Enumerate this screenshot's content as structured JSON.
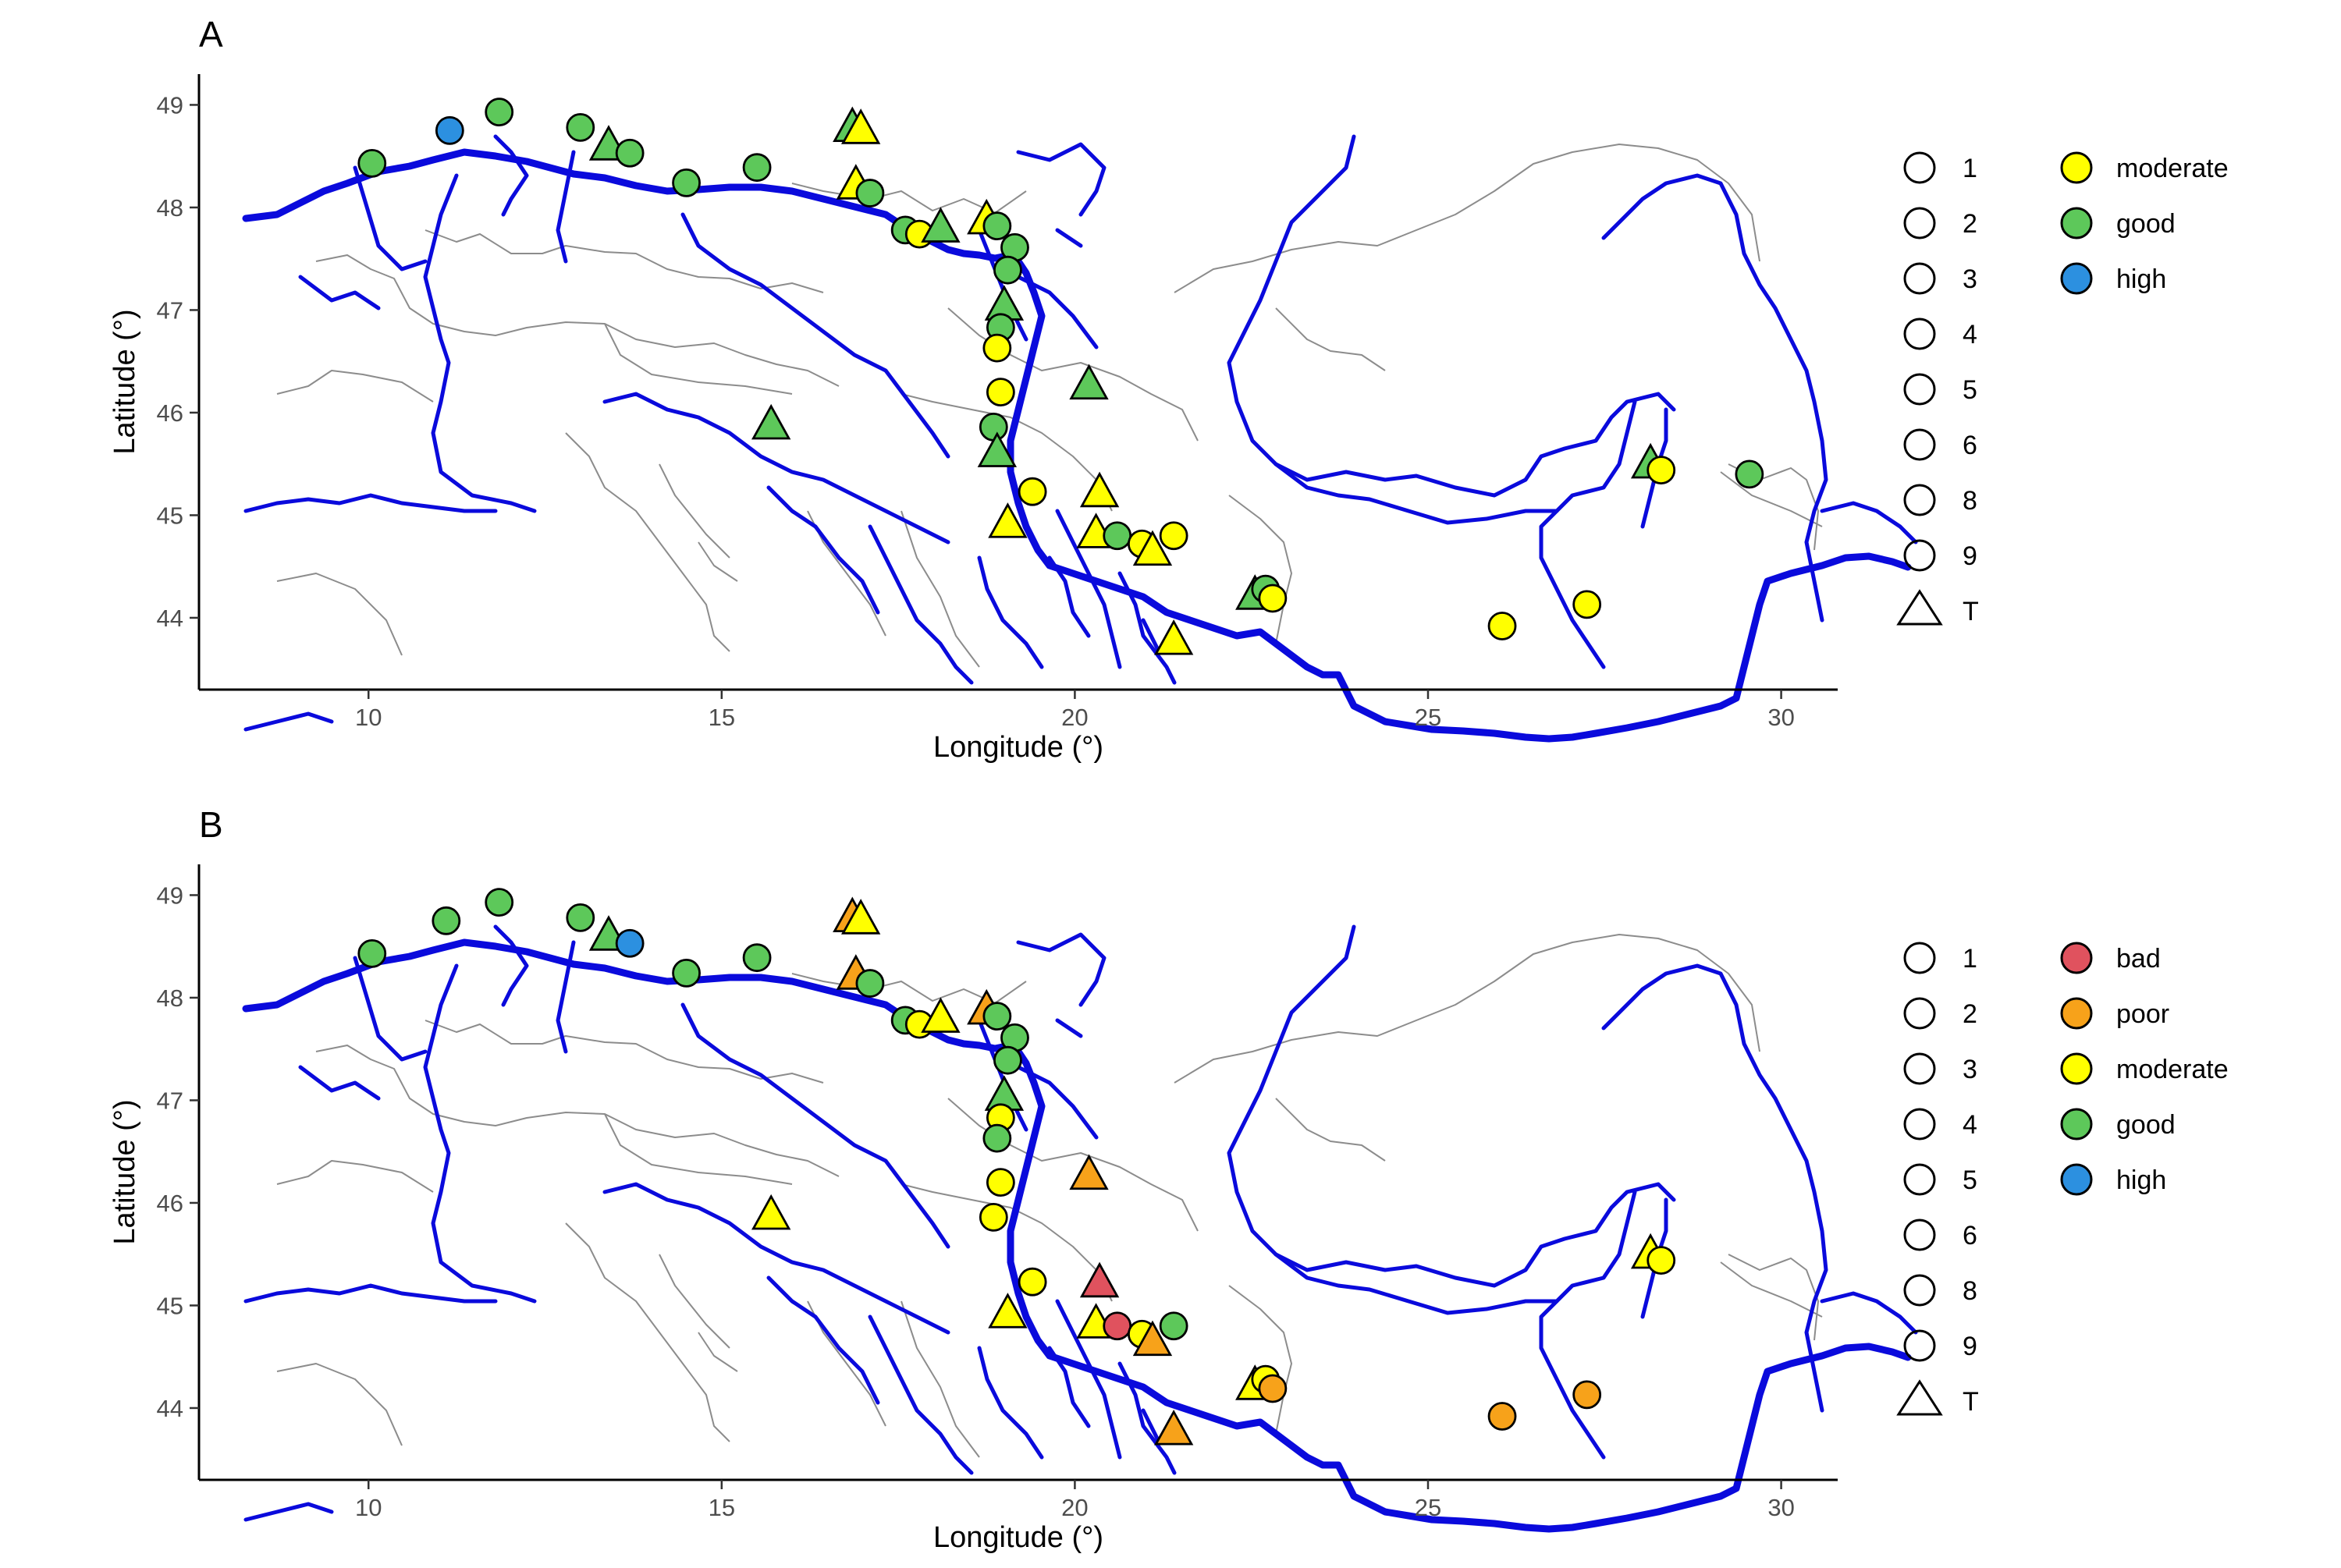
{
  "panels": [
    {
      "letter": "A",
      "size_legend": [
        "1",
        "2",
        "3",
        "4",
        "5",
        "6",
        "8",
        "9",
        "T"
      ],
      "status_legend": [
        {
          "label": "moderate",
          "color": "#ffff00"
        },
        {
          "label": "good",
          "color": "#5dc85a"
        },
        {
          "label": "high",
          "color": "#2c90e0"
        }
      ]
    },
    {
      "letter": "B",
      "size_legend": [
        "1",
        "2",
        "3",
        "4",
        "5",
        "6",
        "8",
        "9",
        "T"
      ],
      "status_legend": [
        {
          "label": "bad",
          "color": "#e0525e"
        },
        {
          "label": "poor",
          "color": "#f7a21a"
        },
        {
          "label": "moderate",
          "color": "#ffff00"
        },
        {
          "label": "good",
          "color": "#5dc85a"
        },
        {
          "label": "high",
          "color": "#2c90e0"
        }
      ]
    }
  ],
  "axes": {
    "xlabel": "Longitude (°)",
    "ylabel": "Latitude (°)",
    "xticks": [
      "10",
      "15",
      "20",
      "25",
      "30"
    ],
    "yticks": [
      "44",
      "45",
      "46",
      "47",
      "48",
      "49"
    ]
  },
  "chart_data": [
    {
      "type": "scatter",
      "title": "A",
      "xlabel": "Longitude (°)",
      "ylabel": "Latitude (°)",
      "xlim": [
        7.6,
        30.8
      ],
      "ylim": [
        43.3,
        49.3
      ],
      "points": [
        {
          "lon": 10.05,
          "lat": 48.43,
          "status": "good",
          "shape": "circle"
        },
        {
          "lon": 11.15,
          "lat": 48.75,
          "status": "high",
          "shape": "circle"
        },
        {
          "lon": 11.85,
          "lat": 48.93,
          "status": "good",
          "shape": "circle"
        },
        {
          "lon": 13.0,
          "lat": 48.78,
          "status": "good",
          "shape": "circle"
        },
        {
          "lon": 13.4,
          "lat": 48.6,
          "status": "good",
          "shape": "triangle"
        },
        {
          "lon": 13.7,
          "lat": 48.53,
          "status": "good",
          "shape": "circle"
        },
        {
          "lon": 14.5,
          "lat": 48.24,
          "status": "good",
          "shape": "circle"
        },
        {
          "lon": 15.5,
          "lat": 48.39,
          "status": "good",
          "shape": "circle"
        },
        {
          "lon": 16.85,
          "lat": 48.78,
          "status": "good",
          "shape": "triangle"
        },
        {
          "lon": 16.97,
          "lat": 48.76,
          "status": "moderate",
          "shape": "triangle"
        },
        {
          "lon": 16.9,
          "lat": 48.22,
          "status": "moderate",
          "shape": "triangle"
        },
        {
          "lon": 17.1,
          "lat": 48.14,
          "status": "good",
          "shape": "circle"
        },
        {
          "lon": 17.6,
          "lat": 47.78,
          "status": "good",
          "shape": "circle"
        },
        {
          "lon": 17.8,
          "lat": 47.74,
          "status": "moderate",
          "shape": "circle"
        },
        {
          "lon": 18.1,
          "lat": 47.8,
          "status": "good",
          "shape": "triangle"
        },
        {
          "lon": 18.75,
          "lat": 47.88,
          "status": "moderate",
          "shape": "triangle"
        },
        {
          "lon": 18.9,
          "lat": 47.82,
          "status": "good",
          "shape": "circle"
        },
        {
          "lon": 19.15,
          "lat": 47.61,
          "status": "good",
          "shape": "circle"
        },
        {
          "lon": 19.05,
          "lat": 47.39,
          "status": "good",
          "shape": "circle"
        },
        {
          "lon": 19.0,
          "lat": 47.04,
          "status": "good",
          "shape": "triangle"
        },
        {
          "lon": 18.95,
          "lat": 46.83,
          "status": "good",
          "shape": "circle"
        },
        {
          "lon": 18.9,
          "lat": 46.63,
          "status": "moderate",
          "shape": "circle"
        },
        {
          "lon": 18.95,
          "lat": 46.2,
          "status": "moderate",
          "shape": "circle"
        },
        {
          "lon": 15.7,
          "lat": 45.88,
          "status": "good",
          "shape": "triangle"
        },
        {
          "lon": 18.85,
          "lat": 45.86,
          "status": "good",
          "shape": "circle"
        },
        {
          "lon": 18.9,
          "lat": 45.61,
          "status": "good",
          "shape": "triangle"
        },
        {
          "lon": 20.2,
          "lat": 46.27,
          "status": "good",
          "shape": "triangle"
        },
        {
          "lon": 19.4,
          "lat": 45.23,
          "status": "moderate",
          "shape": "circle"
        },
        {
          "lon": 20.35,
          "lat": 45.22,
          "status": "moderate",
          "shape": "triangle"
        },
        {
          "lon": 19.05,
          "lat": 44.92,
          "status": "moderate",
          "shape": "triangle"
        },
        {
          "lon": 20.3,
          "lat": 44.82,
          "status": "moderate",
          "shape": "triangle"
        },
        {
          "lon": 20.6,
          "lat": 44.8,
          "status": "good",
          "shape": "circle"
        },
        {
          "lon": 20.95,
          "lat": 44.72,
          "status": "moderate",
          "shape": "circle"
        },
        {
          "lon": 21.1,
          "lat": 44.65,
          "status": "moderate",
          "shape": "triangle"
        },
        {
          "lon": 21.4,
          "lat": 44.8,
          "status": "moderate",
          "shape": "circle"
        },
        {
          "lon": 21.4,
          "lat": 43.78,
          "status": "moderate",
          "shape": "triangle"
        },
        {
          "lon": 22.55,
          "lat": 44.22,
          "status": "good",
          "shape": "triangle"
        },
        {
          "lon": 22.7,
          "lat": 44.28,
          "status": "good",
          "shape": "circle"
        },
        {
          "lon": 22.8,
          "lat": 44.19,
          "status": "moderate",
          "shape": "circle"
        },
        {
          "lon": 26.05,
          "lat": 43.92,
          "status": "moderate",
          "shape": "circle"
        },
        {
          "lon": 27.25,
          "lat": 44.13,
          "status": "moderate",
          "shape": "circle"
        },
        {
          "lon": 28.15,
          "lat": 45.5,
          "status": "good",
          "shape": "triangle"
        },
        {
          "lon": 28.3,
          "lat": 45.44,
          "status": "moderate",
          "shape": "circle"
        },
        {
          "lon": 29.55,
          "lat": 45.4,
          "status": "good",
          "shape": "circle"
        }
      ]
    },
    {
      "type": "scatter",
      "title": "B",
      "xlabel": "Longitude (°)",
      "ylabel": "Latitude (°)",
      "xlim": [
        7.6,
        30.8
      ],
      "ylim": [
        43.3,
        49.3
      ],
      "points": [
        {
          "lon": 10.05,
          "lat": 48.43,
          "status": "good",
          "shape": "circle"
        },
        {
          "lon": 11.1,
          "lat": 48.75,
          "status": "good",
          "shape": "circle"
        },
        {
          "lon": 11.85,
          "lat": 48.93,
          "status": "good",
          "shape": "circle"
        },
        {
          "lon": 13.0,
          "lat": 48.78,
          "status": "good",
          "shape": "circle"
        },
        {
          "lon": 13.4,
          "lat": 48.6,
          "status": "good",
          "shape": "triangle"
        },
        {
          "lon": 13.7,
          "lat": 48.53,
          "status": "high",
          "shape": "circle"
        },
        {
          "lon": 14.5,
          "lat": 48.24,
          "status": "good",
          "shape": "circle"
        },
        {
          "lon": 15.5,
          "lat": 48.39,
          "status": "good",
          "shape": "circle"
        },
        {
          "lon": 16.85,
          "lat": 48.78,
          "status": "poor",
          "shape": "triangle"
        },
        {
          "lon": 16.97,
          "lat": 48.76,
          "status": "moderate",
          "shape": "triangle"
        },
        {
          "lon": 16.9,
          "lat": 48.22,
          "status": "poor",
          "shape": "triangle"
        },
        {
          "lon": 17.1,
          "lat": 48.14,
          "status": "good",
          "shape": "circle"
        },
        {
          "lon": 17.6,
          "lat": 47.78,
          "status": "good",
          "shape": "circle"
        },
        {
          "lon": 17.8,
          "lat": 47.74,
          "status": "moderate",
          "shape": "circle"
        },
        {
          "lon": 18.1,
          "lat": 47.8,
          "status": "moderate",
          "shape": "triangle"
        },
        {
          "lon": 18.75,
          "lat": 47.88,
          "status": "poor",
          "shape": "triangle"
        },
        {
          "lon": 18.9,
          "lat": 47.82,
          "status": "good",
          "shape": "circle"
        },
        {
          "lon": 19.15,
          "lat": 47.61,
          "status": "good",
          "shape": "circle"
        },
        {
          "lon": 19.05,
          "lat": 47.39,
          "status": "good",
          "shape": "circle"
        },
        {
          "lon": 19.0,
          "lat": 47.04,
          "status": "good",
          "shape": "triangle"
        },
        {
          "lon": 18.95,
          "lat": 46.83,
          "status": "moderate",
          "shape": "circle"
        },
        {
          "lon": 18.9,
          "lat": 46.63,
          "status": "good",
          "shape": "circle"
        },
        {
          "lon": 18.95,
          "lat": 46.2,
          "status": "moderate",
          "shape": "circle"
        },
        {
          "lon": 15.7,
          "lat": 45.88,
          "status": "moderate",
          "shape": "triangle"
        },
        {
          "lon": 18.85,
          "lat": 45.86,
          "status": "moderate",
          "shape": "circle"
        },
        {
          "lon": 20.2,
          "lat": 46.27,
          "status": "poor",
          "shape": "triangle"
        },
        {
          "lon": 19.4,
          "lat": 45.23,
          "status": "moderate",
          "shape": "circle"
        },
        {
          "lon": 20.35,
          "lat": 45.22,
          "status": "bad",
          "shape": "triangle"
        },
        {
          "lon": 19.05,
          "lat": 44.92,
          "status": "moderate",
          "shape": "triangle"
        },
        {
          "lon": 20.3,
          "lat": 44.82,
          "status": "moderate",
          "shape": "triangle"
        },
        {
          "lon": 20.6,
          "lat": 44.8,
          "status": "bad",
          "shape": "circle"
        },
        {
          "lon": 20.95,
          "lat": 44.72,
          "status": "moderate",
          "shape": "circle"
        },
        {
          "lon": 21.1,
          "lat": 44.65,
          "status": "poor",
          "shape": "triangle"
        },
        {
          "lon": 21.4,
          "lat": 44.8,
          "status": "good",
          "shape": "circle"
        },
        {
          "lon": 21.4,
          "lat": 43.78,
          "status": "poor",
          "shape": "triangle"
        },
        {
          "lon": 22.55,
          "lat": 44.22,
          "status": "moderate",
          "shape": "triangle"
        },
        {
          "lon": 22.7,
          "lat": 44.28,
          "status": "moderate",
          "shape": "circle"
        },
        {
          "lon": 22.8,
          "lat": 44.19,
          "status": "poor",
          "shape": "circle"
        },
        {
          "lon": 26.05,
          "lat": 43.92,
          "status": "poor",
          "shape": "circle"
        },
        {
          "lon": 27.25,
          "lat": 44.13,
          "status": "poor",
          "shape": "circle"
        },
        {
          "lon": 28.15,
          "lat": 45.5,
          "status": "moderate",
          "shape": "triangle"
        },
        {
          "lon": 28.3,
          "lat": 45.44,
          "status": "moderate",
          "shape": "circle"
        }
      ]
    }
  ]
}
